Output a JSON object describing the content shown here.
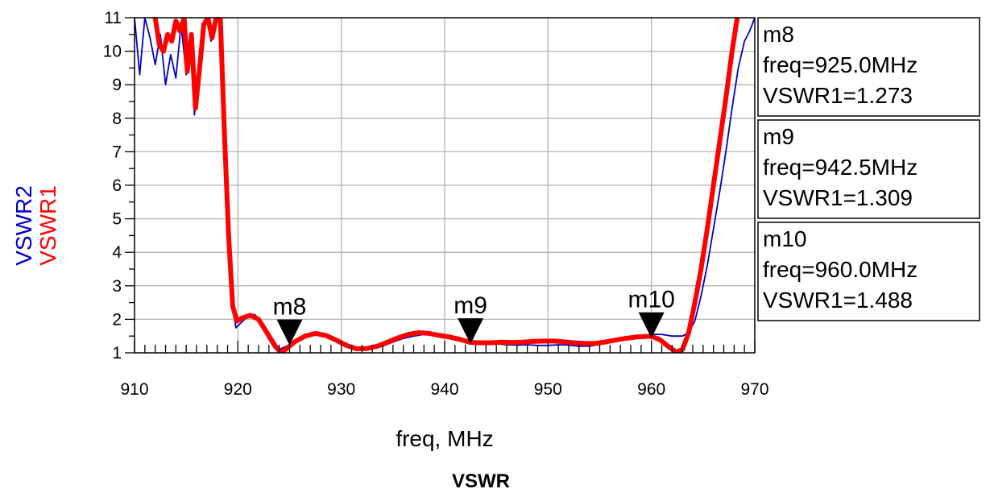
{
  "chart_data": {
    "type": "line",
    "title": "VSWR",
    "xlabel": "freq, MHz",
    "ylabels": [
      {
        "text": "VSWR2",
        "color": "#0000cc"
      },
      {
        "text": "VSWR1",
        "color": "#ff0000"
      }
    ],
    "xlim": [
      910,
      970
    ],
    "ylim": [
      1,
      11
    ],
    "xticks": [
      910,
      920,
      930,
      940,
      950,
      960,
      970
    ],
    "yticks": [
      1,
      2,
      3,
      4,
      5,
      6,
      7,
      8,
      9,
      10,
      11
    ],
    "grid": true,
    "series": [
      {
        "name": "VSWR2",
        "color": "#0000cc",
        "width": "thin",
        "points": [
          [
            910,
            11
          ],
          [
            910.5,
            9.3
          ],
          [
            911,
            11
          ],
          [
            911.5,
            10.4
          ],
          [
            912,
            9.6
          ],
          [
            912.5,
            10.5
          ],
          [
            913,
            9.0
          ],
          [
            913.5,
            9.9
          ],
          [
            914,
            9.2
          ],
          [
            914.5,
            10.8
          ],
          [
            915,
            9.3
          ],
          [
            915.4,
            10.2
          ],
          [
            915.8,
            8.1
          ],
          [
            916.2,
            9.6
          ],
          [
            916.6,
            10.6
          ],
          [
            917,
            11
          ],
          [
            917.4,
            10.3
          ],
          [
            917.8,
            11
          ],
          [
            918.2,
            11
          ],
          [
            918.6,
            8.0
          ],
          [
            919,
            5.0
          ],
          [
            919.4,
            2.6
          ],
          [
            919.8,
            1.75
          ],
          [
            920.3,
            1.9
          ],
          [
            921,
            2.1
          ],
          [
            921.6,
            2.15
          ],
          [
            922.4,
            1.9
          ],
          [
            923.2,
            1.5
          ],
          [
            924,
            1.1
          ],
          [
            924.7,
            1.2
          ],
          [
            925.5,
            1.35
          ],
          [
            926.5,
            1.5
          ],
          [
            927.5,
            1.57
          ],
          [
            928.5,
            1.52
          ],
          [
            929.5,
            1.4
          ],
          [
            930.5,
            1.28
          ],
          [
            931.5,
            1.12
          ],
          [
            932.3,
            1.08
          ],
          [
            933,
            1.12
          ],
          [
            934,
            1.2
          ],
          [
            935,
            1.32
          ],
          [
            936,
            1.43
          ],
          [
            937,
            1.5
          ],
          [
            938,
            1.55
          ],
          [
            939,
            1.55
          ],
          [
            940,
            1.52
          ],
          [
            941,
            1.45
          ],
          [
            942,
            1.38
          ],
          [
            943,
            1.33
          ],
          [
            944,
            1.3
          ],
          [
            945,
            1.27
          ],
          [
            946,
            1.24
          ],
          [
            947,
            1.23
          ],
          [
            948,
            1.24
          ],
          [
            949,
            1.22
          ],
          [
            950,
            1.22
          ],
          [
            951,
            1.24
          ],
          [
            952,
            1.23
          ],
          [
            953,
            1.2
          ],
          [
            954,
            1.2
          ],
          [
            955,
            1.25
          ],
          [
            956,
            1.32
          ],
          [
            957,
            1.4
          ],
          [
            958,
            1.45
          ],
          [
            959,
            1.5
          ],
          [
            960,
            1.55
          ],
          [
            961,
            1.55
          ],
          [
            962,
            1.5
          ],
          [
            963,
            1.5
          ],
          [
            963.6,
            1.6
          ],
          [
            964.2,
            1.95
          ],
          [
            964.8,
            2.7
          ],
          [
            965.4,
            3.6
          ],
          [
            966,
            4.7
          ],
          [
            966.6,
            5.8
          ],
          [
            967.2,
            7.0
          ],
          [
            967.8,
            8.3
          ],
          [
            968.4,
            9.5
          ],
          [
            969,
            10.3
          ],
          [
            969.5,
            10.6
          ],
          [
            970,
            11
          ]
        ]
      },
      {
        "name": "VSWR1",
        "color": "#ff0000",
        "width": "thick",
        "points": [
          [
            912,
            11
          ],
          [
            912.4,
            10.2
          ],
          [
            912.8,
            10.0
          ],
          [
            913.2,
            10.5
          ],
          [
            913.6,
            10.3
          ],
          [
            914,
            10.9
          ],
          [
            914.4,
            10.6
          ],
          [
            914.8,
            11
          ],
          [
            915.1,
            9.4
          ],
          [
            915.5,
            10.5
          ],
          [
            915.9,
            8.3
          ],
          [
            916.3,
            9.5
          ],
          [
            916.7,
            10.8
          ],
          [
            917.1,
            11
          ],
          [
            917.5,
            10.4
          ],
          [
            917.9,
            11
          ],
          [
            918.3,
            11
          ],
          [
            918.7,
            7.5
          ],
          [
            919.1,
            4.5
          ],
          [
            919.5,
            2.4
          ],
          [
            919.9,
            1.95
          ],
          [
            920.5,
            2.05
          ],
          [
            921.2,
            2.12
          ],
          [
            922,
            2.0
          ],
          [
            922.8,
            1.6
          ],
          [
            923.6,
            1.2
          ],
          [
            924.2,
            1.0
          ],
          [
            924.8,
            1.15
          ],
          [
            925.5,
            1.33
          ],
          [
            926.5,
            1.5
          ],
          [
            927.5,
            1.58
          ],
          [
            928.5,
            1.52
          ],
          [
            929.5,
            1.38
          ],
          [
            930.5,
            1.22
          ],
          [
            931.5,
            1.12
          ],
          [
            932.5,
            1.13
          ],
          [
            933.5,
            1.2
          ],
          [
            934.5,
            1.32
          ],
          [
            935.5,
            1.45
          ],
          [
            936.5,
            1.55
          ],
          [
            937.5,
            1.6
          ],
          [
            938.5,
            1.58
          ],
          [
            939.5,
            1.52
          ],
          [
            940.5,
            1.47
          ],
          [
            941.5,
            1.4
          ],
          [
            942.5,
            1.31
          ],
          [
            943.5,
            1.3
          ],
          [
            944.5,
            1.3
          ],
          [
            945.5,
            1.32
          ],
          [
            946.5,
            1.31
          ],
          [
            947.5,
            1.32
          ],
          [
            948.5,
            1.34
          ],
          [
            949.5,
            1.35
          ],
          [
            950.5,
            1.35
          ],
          [
            951.5,
            1.33
          ],
          [
            952.5,
            1.3
          ],
          [
            953.5,
            1.28
          ],
          [
            954.5,
            1.28
          ],
          [
            955.5,
            1.32
          ],
          [
            956.5,
            1.38
          ],
          [
            957.5,
            1.43
          ],
          [
            958.5,
            1.47
          ],
          [
            959.5,
            1.49
          ],
          [
            960,
            1.49
          ],
          [
            960.8,
            1.4
          ],
          [
            961.6,
            1.2
          ],
          [
            962.4,
            1.02
          ],
          [
            963,
            1.1
          ],
          [
            963.6,
            1.6
          ],
          [
            964.2,
            2.5
          ],
          [
            964.8,
            3.5
          ],
          [
            965.4,
            4.7
          ],
          [
            966,
            6.0
          ],
          [
            966.6,
            7.3
          ],
          [
            967.2,
            8.6
          ],
          [
            967.8,
            10.0
          ],
          [
            968.3,
            11
          ]
        ]
      }
    ],
    "markers": [
      {
        "name": "m8",
        "freq": 925.0,
        "value": 1.273,
        "box": [
          "m8",
          "freq=925.0MHz",
          "VSWR1=1.273"
        ]
      },
      {
        "name": "m9",
        "freq": 942.5,
        "value": 1.309,
        "box": [
          "m9",
          "freq=942.5MHz",
          "VSWR1=1.309"
        ]
      },
      {
        "name": "m10",
        "freq": 960.0,
        "value": 1.488,
        "box": [
          "m10",
          "freq=960.0MHz",
          "VSWR1=1.488"
        ]
      }
    ]
  }
}
